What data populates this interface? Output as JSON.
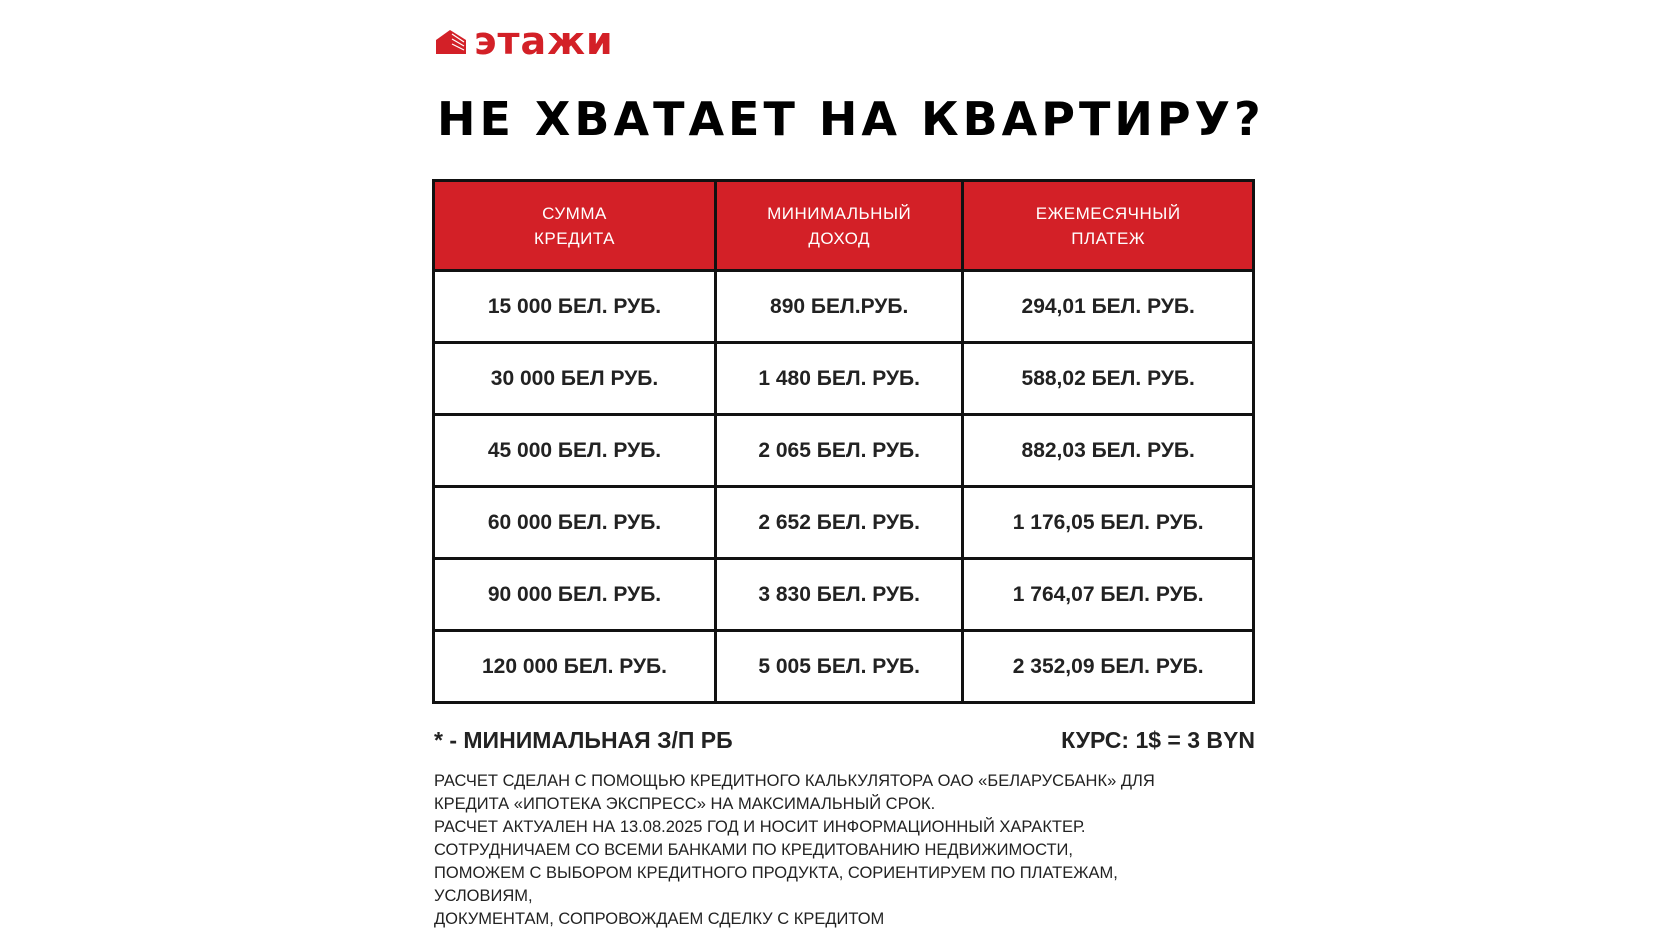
{
  "brand": {
    "name": "этажи",
    "color": "#d32027",
    "icon": "building-logo-icon"
  },
  "title": "НЕ ХВАТАЕТ НА КВАРТИРУ?",
  "table": {
    "headers": [
      [
        "СУММА",
        "КРЕДИТА"
      ],
      [
        "МИНИМАЛЬНЫЙ",
        "ДОХОД"
      ],
      [
        "ЕЖЕМЕСЯЧНЫЙ",
        "ПЛАТЕЖ"
      ]
    ],
    "rows": [
      [
        "15 000 БЕЛ. РУБ.",
        "890 БЕЛ.РУБ.",
        "294,01 БЕЛ. РУБ."
      ],
      [
        "30 000 БЕЛ РУБ.",
        "1 480 БЕЛ. РУБ.",
        "588,02 БЕЛ. РУБ."
      ],
      [
        "45 000 БЕЛ. РУБ.",
        "2 065 БЕЛ. РУБ.",
        "882,03 БЕЛ. РУБ."
      ],
      [
        "60 000 БЕЛ. РУБ.",
        "2 652 БЕЛ. РУБ.",
        "1 176,05 БЕЛ. РУБ."
      ],
      [
        "90 000 БЕЛ. РУБ.",
        "3 830 БЕЛ. РУБ.",
        "1 764,07 БЕЛ. РУБ."
      ],
      [
        "120 000 БЕЛ. РУБ.",
        "5 005 БЕЛ. РУБ.",
        "2 352,09 БЕЛ. РУБ."
      ]
    ]
  },
  "footnote": "* - МИНИМАЛЬНАЯ З/П РБ",
  "rate": "КУРС: 1$ = 3 BYN",
  "notes": [
    "РАСЧЕТ СДЕЛАН С ПОМОЩЬЮ КРЕДИТНОГО КАЛЬКУЛЯТОРА ОАО «БЕЛАРУСБАНК» ДЛЯ",
    "КРЕДИТА «ИПОТЕКА ЭКСПРЕСС» НА МАКСИМАЛЬНЫЙ СРОК.",
    "РАСЧЕТ АКТУАЛЕН НА 13.08.2025 ГОД И НОСИТ ИНФОРМАЦИОННЫЙ ХАРАКТЕР.",
    "СОТРУДНИЧАЕМ СО ВСЕМИ БАНКАМИ ПО КРЕДИТОВАНИЮ НЕДВИЖИМОСТИ,",
    "ПОМОЖЕМ С ВЫБОРОМ КРЕДИТНОГО ПРОДУКТА, СОРИЕНТИРУЕМ ПО ПЛАТЕЖАМ,",
    "УСЛОВИЯМ,",
    "ДОКУМЕНТАМ, СОПРОВОЖДАЕМ СДЕЛКУ С КРЕДИТОМ"
  ]
}
